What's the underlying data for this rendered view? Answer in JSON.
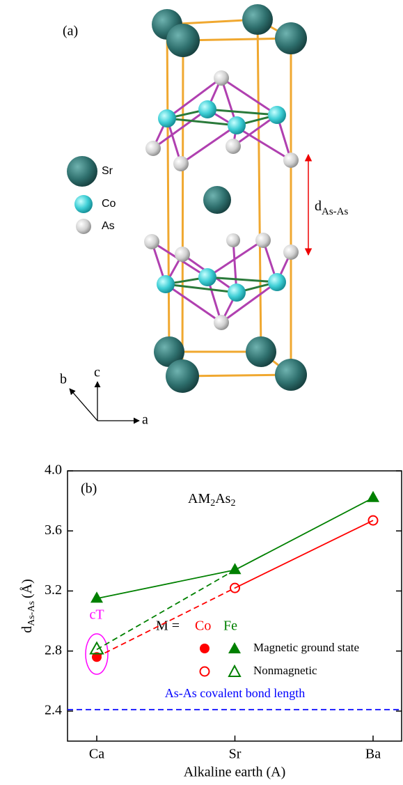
{
  "structure": {
    "panel_label": "(a)",
    "legend": [
      "Sr",
      "Co",
      "As"
    ],
    "distance_label": {
      "main": "d",
      "sub": "As-As"
    },
    "axes": [
      "a",
      "b",
      "c"
    ]
  },
  "chart_data": {
    "type": "line",
    "panel_label": "(b)",
    "formula": [
      "AM",
      "2",
      "As",
      "2"
    ],
    "ylabel": {
      "main": "d",
      "sub": "As-As",
      "unit": "(Å)"
    },
    "xlabel": "Alkaline earth (A)",
    "categories": [
      "Ca",
      "Sr",
      "Ba"
    ],
    "ylim": [
      2.2,
      4.0
    ],
    "yticks": [
      {
        "value": 2.4,
        "label": "2.4"
      },
      {
        "value": 2.8,
        "label": "2.8"
      },
      {
        "value": 3.2,
        "label": "3.2"
      },
      {
        "value": 3.6,
        "label": "3.6"
      },
      {
        "value": 4.0,
        "label": "4.0"
      }
    ],
    "series": [
      {
        "color": "#ff0000",
        "marker": "circle",
        "values": [
          2.76,
          3.22,
          3.67
        ],
        "markers": [
          "filled",
          "open",
          "open"
        ],
        "segments": [
          "dashed",
          "solid"
        ]
      },
      {
        "color": "#008000",
        "marker": "triangle",
        "values": [
          3.15,
          3.34,
          3.82
        ],
        "markers": [
          "filled",
          "filled",
          "filled"
        ],
        "segments": [
          "solid",
          "solid"
        ]
      },
      {
        "color": "#008000",
        "marker": "triangle",
        "values": [
          2.81,
          3.34,
          null
        ],
        "markers": [
          "open",
          null,
          null
        ],
        "segments": [
          "dashed",
          null
        ]
      }
    ],
    "hline": {
      "value": 2.41,
      "label": "As-As covalent bond length",
      "color": "#0000ff"
    },
    "annotation": {
      "text": "cT",
      "color": "#ff00ff"
    },
    "legend": {
      "prefix": "M =",
      "columns": [
        "Co",
        "Fe"
      ],
      "rows": [
        "Magnetic ground state",
        "Nonmagnetic"
      ]
    }
  }
}
